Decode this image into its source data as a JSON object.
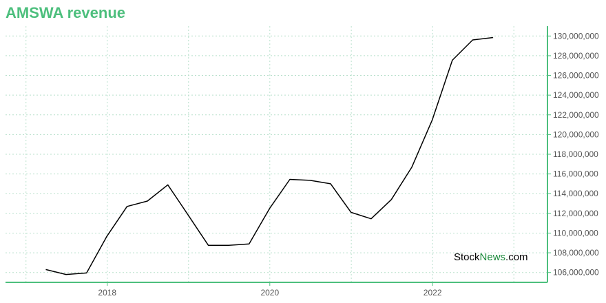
{
  "title": "AMSWA revenue",
  "watermark": {
    "prefix": "Stock",
    "accent": "News",
    "suffix": ".com"
  },
  "colors": {
    "accent": "#4dbf7d",
    "line": "#000000",
    "grid": "#b8e0cc",
    "watermark_accent": "#1a8a3b"
  },
  "chart_data": {
    "type": "line",
    "title": "AMSWA revenue",
    "xlabel": "",
    "ylabel": "",
    "x": [
      "2017-03-31",
      "2017-06-30",
      "2017-09-30",
      "2017-12-31",
      "2018-03-31",
      "2018-06-30",
      "2018-09-30",
      "2018-12-31",
      "2019-03-31",
      "2019-06-30",
      "2019-09-30",
      "2019-12-31",
      "2020-03-31",
      "2020-06-30",
      "2020-09-30",
      "2020-12-31",
      "2021-03-31",
      "2021-06-30",
      "2021-09-30",
      "2021-12-31",
      "2022-03-31",
      "2022-06-30",
      "2022-09-30"
    ],
    "values": [
      106300000,
      105800000,
      105950000,
      109700000,
      112700000,
      113250000,
      114900000,
      111800000,
      108750000,
      108750000,
      108900000,
      112500000,
      115450000,
      115350000,
      115000000,
      112100000,
      111450000,
      113400000,
      116700000,
      121500000,
      127550000,
      129600000,
      129850000
    ],
    "xlim": [
      "2016-10-01",
      "2023-06-01"
    ],
    "ylim": [
      105000000,
      131000000
    ],
    "x_ticks": [
      {
        "date": "2018-01-01",
        "label": "2018"
      },
      {
        "date": "2020-01-01",
        "label": "2020"
      },
      {
        "date": "2022-01-01",
        "label": "2022"
      }
    ],
    "x_grid_dates": [
      "2017-01-01",
      "2018-01-01",
      "2019-01-01",
      "2020-01-01",
      "2021-01-01",
      "2022-01-01",
      "2023-01-01"
    ],
    "y_ticks": [
      106000000,
      108000000,
      110000000,
      112000000,
      114000000,
      116000000,
      118000000,
      120000000,
      122000000,
      124000000,
      126000000,
      128000000,
      130000000
    ],
    "y_tick_labels": [
      "106,000,000",
      "108,000,000",
      "110,000,000",
      "112,000,000",
      "114,000,000",
      "116,000,000",
      "118,000,000",
      "120,000,000",
      "122,000,000",
      "124,000,000",
      "126,000,000",
      "128,000,000",
      "130,000,000"
    ],
    "y_axis_side": "right",
    "grid": true,
    "legend": "none"
  }
}
